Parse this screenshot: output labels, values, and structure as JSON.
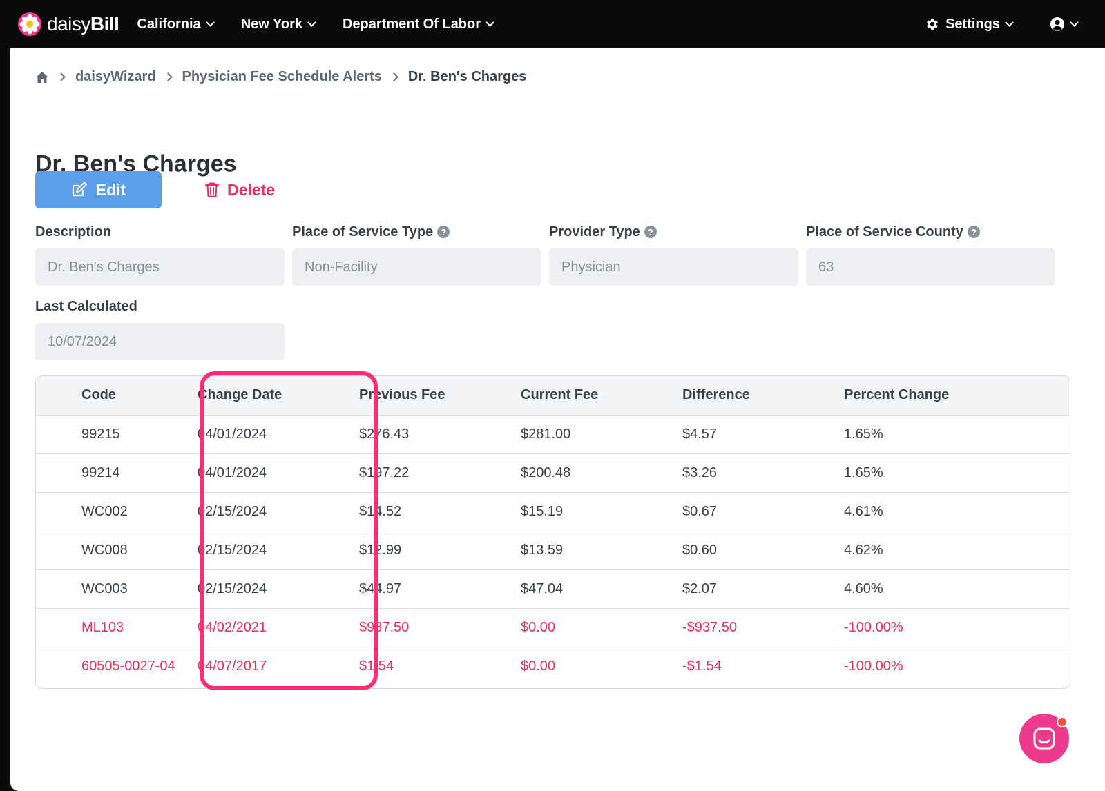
{
  "brand": {
    "name_light": "daisy",
    "name_bold": "Bill"
  },
  "nav": {
    "items": [
      {
        "label": "California"
      },
      {
        "label": "New York"
      },
      {
        "label": "Department Of Labor"
      }
    ],
    "settings_label": "Settings"
  },
  "breadcrumb": {
    "items": [
      "daisyWizard",
      "Physician Fee Schedule Alerts",
      "Dr. Ben's Charges"
    ]
  },
  "page": {
    "title": "Dr. Ben's Charges"
  },
  "actions": {
    "edit_label": "Edit",
    "delete_label": "Delete"
  },
  "fields": {
    "description": {
      "label": "Description",
      "value": "Dr. Ben's Charges"
    },
    "place_of_service_type": {
      "label": "Place of Service Type",
      "value": "Non-Facility"
    },
    "provider_type": {
      "label": "Provider Type",
      "value": "Physician"
    },
    "place_of_service_county": {
      "label": "Place of Service County",
      "value": "63"
    },
    "last_calculated": {
      "label": "Last Calculated",
      "value": "10/07/2024"
    }
  },
  "table": {
    "headers": [
      "Code",
      "Change Date",
      "Previous Fee",
      "Current Fee",
      "Difference",
      "Percent Change"
    ],
    "rows": [
      {
        "code": "99215",
        "change_date": "04/01/2024",
        "previous_fee": "$276.43",
        "current_fee": "$281.00",
        "difference": "$4.57",
        "percent_change": "1.65%"
      },
      {
        "code": "99214",
        "change_date": "04/01/2024",
        "previous_fee": "$197.22",
        "current_fee": "$200.48",
        "difference": "$3.26",
        "percent_change": "1.65%"
      },
      {
        "code": "WC002",
        "change_date": "02/15/2024",
        "previous_fee": "$14.52",
        "current_fee": "$15.19",
        "difference": "$0.67",
        "percent_change": "4.61%"
      },
      {
        "code": "WC008",
        "change_date": "02/15/2024",
        "previous_fee": "$12.99",
        "current_fee": "$13.59",
        "difference": "$0.60",
        "percent_change": "4.62%"
      },
      {
        "code": "WC003",
        "change_date": "02/15/2024",
        "previous_fee": "$44.97",
        "current_fee": "$47.04",
        "difference": "$2.07",
        "percent_change": "4.60%"
      },
      {
        "code": "ML103",
        "change_date": "04/02/2021",
        "previous_fee": "$937.50",
        "current_fee": "$0.00",
        "difference": "-$937.50",
        "percent_change": "-100.00%"
      },
      {
        "code": "60505-0027-04",
        "change_date": "04/07/2017",
        "previous_fee": "$1.54",
        "current_fee": "$0.00",
        "difference": "-$1.54",
        "percent_change": "-100.00%"
      }
    ]
  },
  "colors": {
    "primary": "#5b9ee9",
    "danger": "#ee2d5d",
    "highlight": "#ff2e74",
    "chat": "#ee3a8c"
  },
  "icons": [
    "daisy-logo-icon",
    "chevron-down-icon",
    "gear-icon",
    "user-circle-icon",
    "home-icon",
    "chevron-right-icon",
    "edit-icon",
    "trash-icon",
    "help-icon",
    "chat-icon"
  ]
}
